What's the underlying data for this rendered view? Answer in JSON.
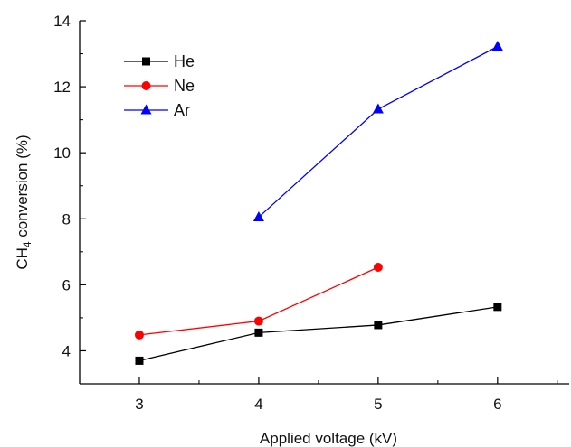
{
  "chart_data": {
    "type": "line",
    "xlabel": "Applied voltage (kV)",
    "ylabel_main": "CH",
    "ylabel_subscript": "4",
    "ylabel_rest": " conversion (%)",
    "xlim": [
      2.5,
      6.6
    ],
    "ylim": [
      3.0,
      14.0
    ],
    "x_ticks": [
      3,
      4,
      5,
      6
    ],
    "y_ticks": [
      4,
      6,
      8,
      10,
      12,
      14
    ],
    "grid": false,
    "legend_position": "top-left",
    "series": [
      {
        "name": "He",
        "color": "#000000",
        "marker": "square",
        "x": [
          3,
          4,
          5,
          6
        ],
        "y": [
          3.7,
          4.55,
          4.78,
          5.33
        ]
      },
      {
        "name": "Ne",
        "color": "#ff0000",
        "marker": "circle",
        "x": [
          3,
          4,
          5
        ],
        "y": [
          4.48,
          4.9,
          6.53
        ]
      },
      {
        "name": "Ar",
        "color": "#0000ff",
        "marker": "triangle",
        "x": [
          4,
          5,
          6
        ],
        "y": [
          8.05,
          11.32,
          13.22
        ]
      }
    ]
  }
}
